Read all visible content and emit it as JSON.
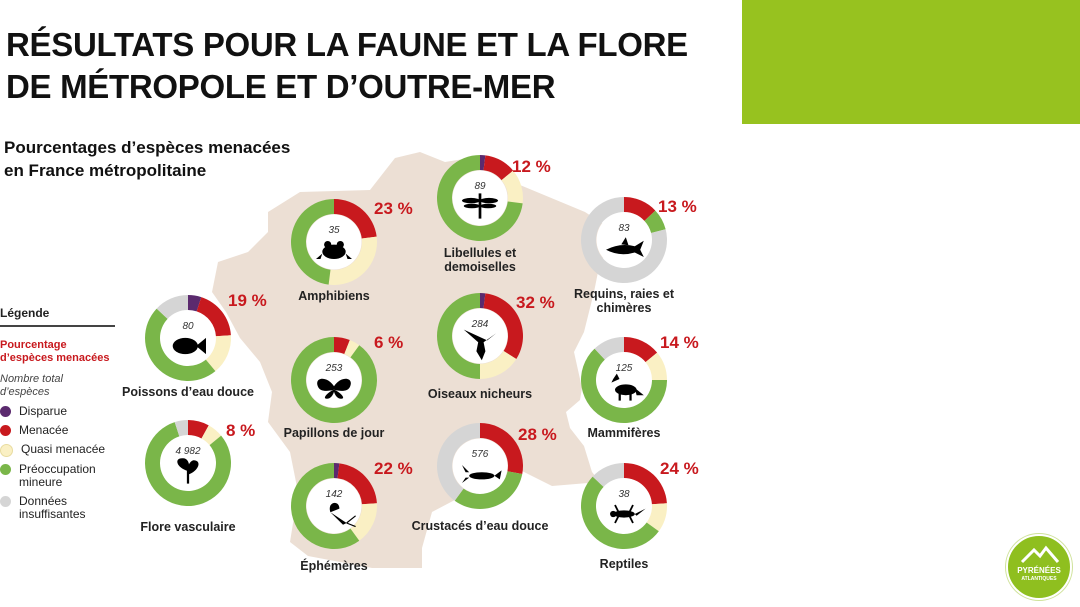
{
  "title_lines": [
    "RÉSULTATS POUR LA FAUNE ET LA FLORE",
    "DE MÉTROPOLE ET D’OUTRE-MER"
  ],
  "subtitle_lines": [
    "Pourcentages d’espèces menacées",
    "en France métropolitaine"
  ],
  "colors": {
    "disparue": "#5b2a6e",
    "menacee": "#c8191e",
    "quasi": "#faf0c4",
    "preoccupation": "#7ab649",
    "donnees": "#d5d5d5",
    "map": "#ecdfd4",
    "accent": "#97c21f"
  },
  "legend": {
    "title": "Légende",
    "pct_label_1": "Pourcentage",
    "pct_label_2": "d’espèces menacées",
    "total_label_1": "Nombre total",
    "total_label_2": "d’espèces",
    "items": [
      {
        "lines": [
          "Disparue"
        ],
        "key": "disparue"
      },
      {
        "lines": [
          "Menacée"
        ],
        "key": "menacee"
      },
      {
        "lines": [
          "Quasi menacée"
        ],
        "key": "quasi"
      },
      {
        "lines": [
          "Préoccupation",
          "mineure"
        ],
        "key": "preoccupation"
      },
      {
        "lines": [
          "Données",
          "insuffisantes"
        ],
        "key": "donnees"
      }
    ]
  },
  "chart_data": {
    "type": "donut",
    "title": "Pourcentages d’espèces menacées en France métropolitaine",
    "series_keys": [
      "disparue",
      "menacee",
      "quasi",
      "preoccupation",
      "donnees"
    ],
    "groups": [
      {
        "name_lines": [
          "Amphibiens"
        ],
        "pct_label": "23 %",
        "total": "35",
        "icon": "frog-icon",
        "values": {
          "disparue": 0,
          "menacee": 23,
          "quasi": 29,
          "preoccupation": 48,
          "donnees": 0
        }
      },
      {
        "name_lines": [
          "Libellules et",
          "demoiselles"
        ],
        "pct_label": "12 %",
        "total": "89",
        "icon": "dragonfly-icon",
        "values": {
          "disparue": 2,
          "menacee": 12,
          "quasi": 13,
          "preoccupation": 73,
          "donnees": 0
        }
      },
      {
        "name_lines": [
          "Requins, raies et",
          "chimères"
        ],
        "pct_label": "13 %",
        "total": "83",
        "icon": "shark-icon",
        "values": {
          "disparue": 0,
          "menacee": 13,
          "quasi": 0,
          "preoccupation": 8,
          "donnees": 79
        }
      },
      {
        "name_lines": [
          "Poissons d’eau douce"
        ],
        "pct_label": "19 %",
        "total": "80",
        "icon": "fish-icon",
        "values": {
          "disparue": 5,
          "menacee": 19,
          "quasi": 15,
          "preoccupation": 48,
          "donnees": 13
        }
      },
      {
        "name_lines": [
          "Papillons de jour"
        ],
        "pct_label": "6 %",
        "total": "253",
        "icon": "butterfly-icon",
        "values": {
          "disparue": 0,
          "menacee": 6,
          "quasi": 4,
          "preoccupation": 90,
          "donnees": 0
        }
      },
      {
        "name_lines": [
          "Oiseaux nicheurs"
        ],
        "pct_label": "32 %",
        "total": "284",
        "icon": "eagle-icon",
        "values": {
          "disparue": 2,
          "menacee": 32,
          "quasi": 16,
          "preoccupation": 50,
          "donnees": 0
        }
      },
      {
        "name_lines": [
          "Mammifères"
        ],
        "pct_label": "14 %",
        "total": "125",
        "icon": "fox-icon",
        "values": {
          "disparue": 0,
          "menacee": 14,
          "quasi": 11,
          "preoccupation": 63,
          "donnees": 12
        }
      },
      {
        "name_lines": [
          "Flore vasculaire"
        ],
        "pct_label": "8 %",
        "total": "4 982",
        "icon": "plant-icon",
        "values": {
          "disparue": 0,
          "menacee": 8,
          "quasi": 6,
          "preoccupation": 81,
          "donnees": 5
        }
      },
      {
        "name_lines": [
          "Crustacés d’eau douce"
        ],
        "pct_label": "28 %",
        "total": "576",
        "icon": "crayfish-icon",
        "values": {
          "disparue": 0,
          "menacee": 28,
          "quasi": 0,
          "preoccupation": 32,
          "donnees": 40
        }
      },
      {
        "name_lines": [
          "Éphémères"
        ],
        "pct_label": "22 %",
        "total": "142",
        "icon": "mayfly-icon",
        "values": {
          "disparue": 2,
          "menacee": 22,
          "quasi": 16,
          "preoccupation": 60,
          "donnees": 0
        }
      },
      {
        "name_lines": [
          "Reptiles"
        ],
        "pct_label": "24 %",
        "total": "38",
        "icon": "lizard-icon",
        "values": {
          "disparue": 0,
          "menacee": 24,
          "quasi": 11,
          "preoccupation": 52,
          "donnees": 13
        }
      }
    ]
  },
  "logo": {
    "line1": "PYRÉNÉES",
    "line2": "ATLANTIQUES"
  }
}
